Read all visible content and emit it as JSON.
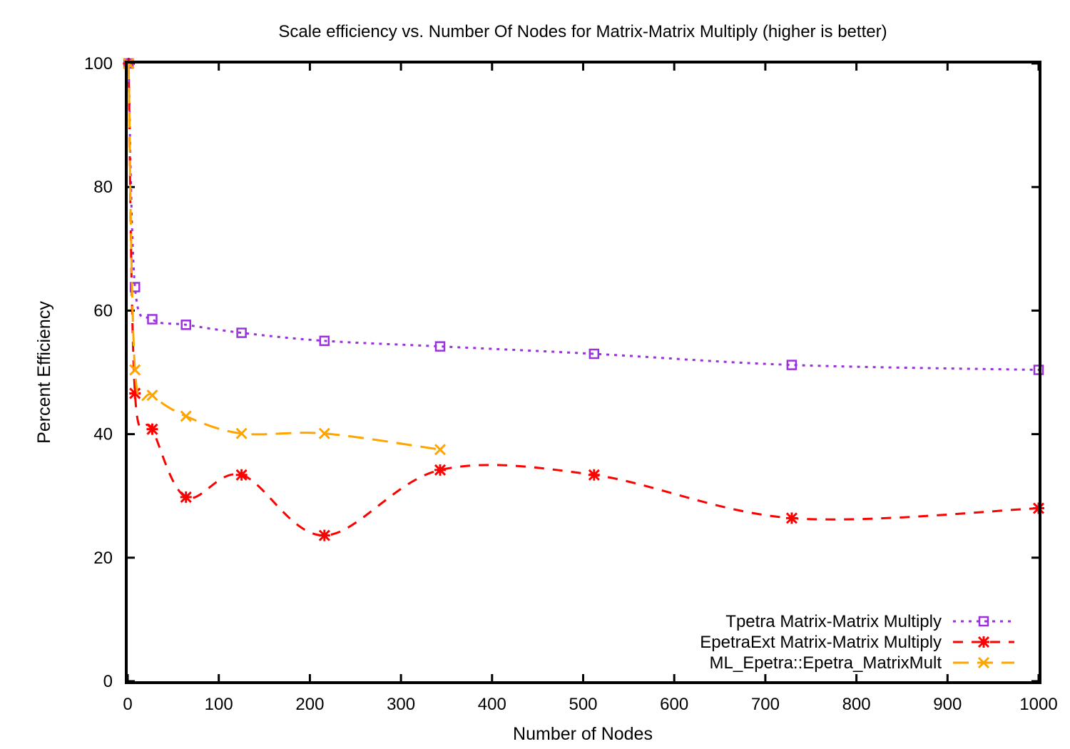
{
  "chart_data": {
    "type": "line",
    "title": "Scale efficiency vs. Number Of Nodes for Matrix-Matrix Multiply (higher is better)",
    "xlabel": "Number of Nodes",
    "ylabel": "Percent Efficiency",
    "xlim": [
      0,
      1000
    ],
    "ylim": [
      0,
      100
    ],
    "xticks": [
      0,
      100,
      200,
      300,
      400,
      500,
      600,
      700,
      800,
      900,
      1000
    ],
    "yticks": [
      0,
      20,
      40,
      60,
      80,
      100
    ],
    "grid": false,
    "legend_position": "bottom-right",
    "series": [
      {
        "name": "Tpetra Matrix-Matrix Multiply",
        "color": "#9b30e0",
        "dash": "dotted",
        "marker": "open-square",
        "x": [
          1,
          8,
          27,
          64,
          125,
          216,
          343,
          512,
          729,
          1000
        ],
        "y": [
          100,
          63.8,
          58.6,
          57.7,
          56.4,
          55.1,
          54.2,
          53.0,
          51.2,
          50.4
        ]
      },
      {
        "name": "EpetraExt Matrix-Matrix Multiply",
        "color": "#ff0000",
        "dash": "dashed",
        "marker": "star",
        "x": [
          1,
          8,
          27,
          64,
          125,
          216,
          343,
          512,
          729,
          1000
        ],
        "y": [
          100,
          46.6,
          40.8,
          29.8,
          33.4,
          23.6,
          34.2,
          33.4,
          26.4,
          28.0
        ]
      },
      {
        "name": "ML_Epetra::Epetra_MatrixMult",
        "color": "#ffa500",
        "dash": "long-dashed",
        "marker": "x",
        "x": [
          1,
          8,
          27,
          64,
          125,
          216,
          343
        ],
        "y": [
          100,
          50.4,
          46.3,
          42.9,
          40.1,
          40.1,
          37.5
        ]
      }
    ]
  }
}
